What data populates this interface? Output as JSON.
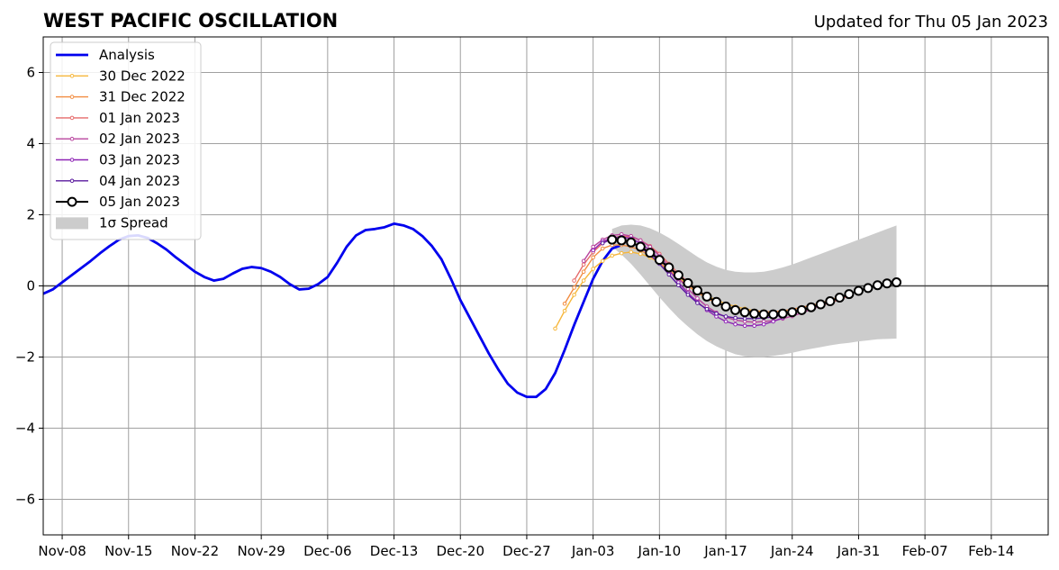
{
  "chart_data": {
    "type": "line",
    "title": "WEST PACIFIC OSCILLATION",
    "subtitle": "Updated for Thu 05 Jan 2023",
    "xlabel": "",
    "ylabel": "",
    "x_start_date": "2022-11-06",
    "xlim": [
      "2022-11-06",
      "2023-02-20"
    ],
    "ylim": [
      -7,
      7
    ],
    "yticks": [
      -6,
      -4,
      -2,
      0,
      2,
      4,
      6
    ],
    "ytick_labels": [
      "−6",
      "−4",
      "−2",
      "0",
      "2",
      "4",
      "6"
    ],
    "xticks": [
      "2022-11-08",
      "2022-11-15",
      "2022-11-22",
      "2022-11-29",
      "2022-12-06",
      "2022-12-13",
      "2022-12-20",
      "2022-12-27",
      "2023-01-03",
      "2023-01-10",
      "2023-01-17",
      "2023-01-24",
      "2023-01-31",
      "2023-02-07",
      "2023-02-14"
    ],
    "xtick_labels": [
      "Nov-08",
      "Nov-15",
      "Nov-22",
      "Nov-29",
      "Dec-06",
      "Dec-13",
      "Dec-20",
      "Dec-27",
      "Jan-03",
      "Jan-10",
      "Jan-17",
      "Jan-24",
      "Jan-31",
      "Feb-07",
      "Feb-14"
    ],
    "grid": true,
    "legend_position": "top-left",
    "analysis": {
      "name": "Analysis",
      "color": "#0000ee",
      "start": "2022-11-06",
      "values": [
        -0.22,
        -0.1,
        0.1,
        0.3,
        0.5,
        0.7,
        0.92,
        1.12,
        1.3,
        1.4,
        1.42,
        1.35,
        1.2,
        1.02,
        0.8,
        0.6,
        0.4,
        0.25,
        0.15,
        0.2,
        0.35,
        0.48,
        0.53,
        0.5,
        0.4,
        0.25,
        0.05,
        -0.1,
        -0.08,
        0.05,
        0.25,
        0.65,
        1.1,
        1.42,
        1.57,
        1.6,
        1.65,
        1.75,
        1.7,
        1.6,
        1.4,
        1.12,
        0.75,
        0.2,
        -0.4,
        -0.9,
        -1.4,
        -1.9,
        -2.35,
        -2.75,
        -3.0,
        -3.12,
        -3.12,
        -2.9,
        -2.45,
        -1.8,
        -1.1,
        -0.45,
        0.2,
        0.7,
        1.05,
        1.15
      ]
    },
    "series": [
      {
        "name": "30 Dec 2022",
        "color": "#f6b73c",
        "start": "2022-12-30",
        "values": [
          -1.2,
          -0.7,
          -0.25,
          0.15,
          0.48,
          0.7,
          0.85,
          0.92,
          0.95,
          0.9,
          0.8,
          0.65,
          0.45,
          0.25,
          0.05,
          -0.12,
          -0.28,
          -0.4,
          -0.5,
          -0.58,
          -0.64,
          -0.7,
          -0.72
        ]
      },
      {
        "name": "31 Dec 2022",
        "color": "#f28c40",
        "start": "2022-12-31",
        "values": [
          -0.5,
          -0.05,
          0.4,
          0.8,
          1.05,
          1.15,
          1.15,
          1.1,
          1.0,
          0.85,
          0.65,
          0.42,
          0.2,
          0.0,
          -0.18,
          -0.35,
          -0.48,
          -0.58,
          -0.65,
          -0.7,
          -0.72,
          -0.73,
          -0.73,
          -0.7,
          -0.66,
          -0.6,
          -0.55,
          -0.48,
          -0.4,
          -0.3
        ]
      },
      {
        "name": "01 Jan 2023",
        "color": "#e56a6a",
        "start": "2023-01-01",
        "values": [
          0.15,
          0.6,
          0.95,
          1.2,
          1.35,
          1.4,
          1.38,
          1.28,
          1.12,
          0.9,
          0.62,
          0.35,
          0.1,
          -0.12,
          -0.3,
          -0.45,
          -0.58,
          -0.68,
          -0.75,
          -0.8,
          -0.82,
          -0.82,
          -0.8,
          -0.75,
          -0.7,
          -0.62,
          -0.55,
          -0.48,
          -0.38,
          -0.28
        ]
      },
      {
        "name": "02 Jan 2023",
        "color": "#b8449e",
        "start": "2023-01-02",
        "values": [
          0.7,
          1.1,
          1.3,
          1.42,
          1.45,
          1.4,
          1.28,
          1.1,
          0.85,
          0.55,
          0.22,
          -0.08,
          -0.35,
          -0.58,
          -0.75,
          -0.88,
          -0.96,
          -1.0,
          -1.02,
          -1.0,
          -0.98,
          -0.92,
          -0.85,
          -0.76,
          -0.66,
          -0.55,
          -0.44
        ]
      },
      {
        "name": "03 Jan 2023",
        "color": "#8e24b5",
        "start": "2023-01-03",
        "values": [
          1.0,
          1.25,
          1.35,
          1.38,
          1.33,
          1.2,
          1.0,
          0.75,
          0.45,
          0.1,
          -0.2,
          -0.45,
          -0.68,
          -0.86,
          -1.0,
          -1.08,
          -1.12,
          -1.12,
          -1.08,
          -1.0,
          -0.9
        ]
      },
      {
        "name": "04 Jan 2023",
        "color": "#5a1a9e",
        "start": "2023-01-04",
        "values": [
          1.2,
          1.32,
          1.3,
          1.22,
          1.08,
          0.88,
          0.62,
          0.32,
          0.02,
          -0.25,
          -0.48,
          -0.65,
          -0.78,
          -0.86,
          -0.9,
          -0.92,
          -0.92,
          -0.9,
          -0.87,
          -0.82
        ]
      },
      {
        "name": "05 Jan 2023",
        "color": "#000000",
        "start": "2023-01-05",
        "values": [
          1.3,
          1.28,
          1.22,
          1.1,
          0.93,
          0.73,
          0.52,
          0.3,
          0.08,
          -0.13,
          -0.3,
          -0.45,
          -0.58,
          -0.68,
          -0.74,
          -0.78,
          -0.8,
          -0.8,
          -0.78,
          -0.74,
          -0.68,
          -0.6,
          -0.52,
          -0.43,
          -0.33,
          -0.23,
          -0.14,
          -0.06,
          0.02,
          0.07,
          0.1
        ]
      }
    ],
    "spread": {
      "name": "1σ Spread",
      "color": "#cccccc",
      "start": "2023-01-05",
      "upper": [
        1.6,
        1.7,
        1.72,
        1.7,
        1.62,
        1.5,
        1.35,
        1.18,
        1.0,
        0.82,
        0.66,
        0.54,
        0.45,
        0.4,
        0.38,
        0.38,
        0.4,
        0.45,
        0.52,
        0.6,
        0.7,
        0.8,
        0.9,
        1.0,
        1.1,
        1.2,
        1.3,
        1.4,
        1.5,
        1.6,
        1.7
      ],
      "lower": [
        1.1,
        0.88,
        0.62,
        0.32,
        0.0,
        -0.32,
        -0.62,
        -0.9,
        -1.14,
        -1.36,
        -1.55,
        -1.7,
        -1.82,
        -1.92,
        -1.98,
        -2.0,
        -2.0,
        -1.97,
        -1.93,
        -1.88,
        -1.82,
        -1.77,
        -1.72,
        -1.67,
        -1.63,
        -1.6,
        -1.56,
        -1.53,
        -1.5,
        -1.49,
        -1.48
      ]
    }
  }
}
